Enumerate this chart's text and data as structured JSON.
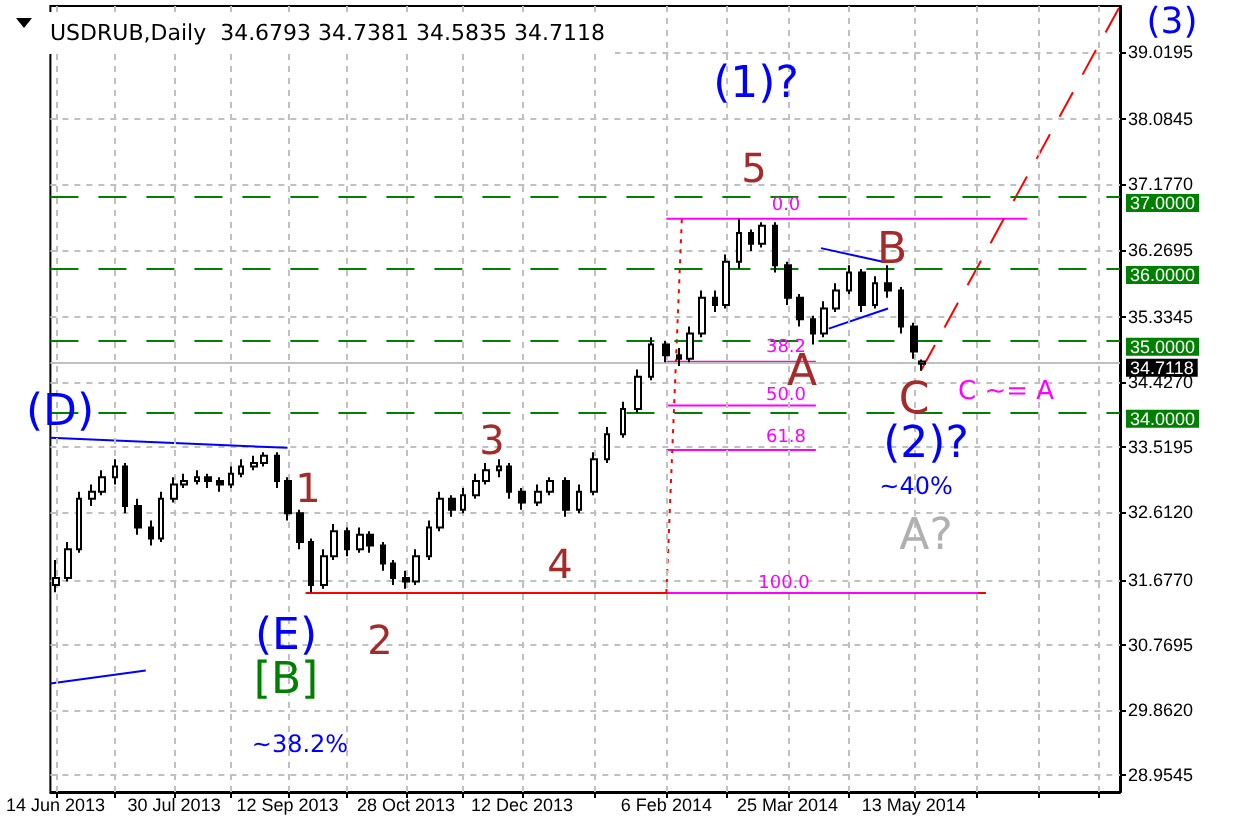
{
  "chart_data": {
    "type": "candlestick",
    "title": "USDRUB,Daily  34.6793 34.7381 34.5835 34.7118",
    "color": "#000000",
    "x": [
      "2013-06-14",
      "2013-06-19",
      "2013-06-23",
      "2013-06-28",
      "2013-07-02",
      "2013-07-07",
      "2013-07-11",
      "2013-07-16",
      "2013-07-21",
      "2013-07-25",
      "2013-07-30",
      "2013-08-03",
      "2013-08-08",
      "2013-08-12",
      "2013-08-17",
      "2013-08-21",
      "2013-08-25",
      "2013-08-30",
      "2013-09-03",
      "2013-09-08",
      "2013-09-12",
      "2013-09-17",
      "2013-09-21",
      "2013-09-26",
      "2013-09-30",
      "2013-10-05",
      "2013-10-10",
      "2013-10-14",
      "2013-10-19",
      "2013-10-23",
      "2013-10-28",
      "2013-11-01",
      "2013-11-06",
      "2013-11-10",
      "2013-11-15",
      "2013-11-19",
      "2013-11-24",
      "2013-11-28",
      "2013-12-03",
      "2013-12-07",
      "2013-12-12",
      "2013-12-18",
      "2013-12-23",
      "2013-12-29",
      "2014-01-03",
      "2014-01-09",
      "2014-01-14",
      "2014-01-20",
      "2014-01-26",
      "2014-01-31",
      "2014-02-06",
      "2014-02-11",
      "2014-02-15",
      "2014-02-20",
      "2014-02-25",
      "2014-03-01",
      "2014-03-06",
      "2014-03-11",
      "2014-03-15",
      "2014-03-20",
      "2014-03-25",
      "2014-03-30",
      "2014-04-04",
      "2014-04-08",
      "2014-04-13",
      "2014-04-18",
      "2014-04-23",
      "2014-04-28",
      "2014-05-03",
      "2014-05-08",
      "2014-05-13",
      "2014-05-16"
    ],
    "ohlc": [
      [
        31.6,
        31.95,
        31.5,
        31.7
      ],
      [
        31.7,
        32.2,
        31.65,
        32.1
      ],
      [
        32.1,
        32.9,
        32.05,
        32.8
      ],
      [
        32.8,
        33.0,
        32.7,
        32.9
      ],
      [
        32.9,
        33.2,
        32.85,
        33.1
      ],
      [
        33.1,
        33.35,
        33.0,
        33.25
      ],
      [
        33.25,
        33.3,
        32.6,
        32.7
      ],
      [
        32.7,
        32.8,
        32.3,
        32.4
      ],
      [
        32.4,
        32.5,
        32.15,
        32.25
      ],
      [
        32.25,
        32.9,
        32.2,
        32.8
      ],
      [
        32.8,
        33.1,
        32.75,
        33.0
      ],
      [
        33.0,
        33.15,
        32.95,
        33.05
      ],
      [
        33.05,
        33.2,
        33.0,
        33.1
      ],
      [
        33.1,
        33.15,
        32.95,
        33.05
      ],
      [
        33.05,
        33.1,
        32.9,
        33.0
      ],
      [
        33.0,
        33.25,
        32.95,
        33.15
      ],
      [
        33.15,
        33.35,
        33.1,
        33.25
      ],
      [
        33.25,
        33.4,
        33.2,
        33.3
      ],
      [
        33.3,
        33.45,
        33.25,
        33.4
      ],
      [
        33.4,
        33.45,
        32.95,
        33.05
      ],
      [
        33.05,
        33.1,
        32.5,
        32.6
      ],
      [
        32.6,
        32.65,
        32.1,
        32.2
      ],
      [
        32.2,
        32.25,
        31.5,
        31.6
      ],
      [
        31.6,
        32.1,
        31.55,
        32.0
      ],
      [
        32.0,
        32.45,
        31.95,
        32.35
      ],
      [
        32.35,
        32.4,
        32.0,
        32.1
      ],
      [
        32.1,
        32.4,
        32.05,
        32.3
      ],
      [
        32.3,
        32.35,
        32.05,
        32.15
      ],
      [
        32.15,
        32.2,
        31.8,
        31.9
      ],
      [
        31.9,
        31.95,
        31.6,
        31.7
      ],
      [
        31.7,
        31.8,
        31.55,
        31.65
      ],
      [
        31.65,
        32.1,
        31.6,
        32.0
      ],
      [
        32.0,
        32.5,
        31.95,
        32.4
      ],
      [
        32.4,
        32.9,
        32.35,
        32.8
      ],
      [
        32.8,
        32.85,
        32.55,
        32.65
      ],
      [
        32.65,
        32.95,
        32.6,
        32.85
      ],
      [
        32.85,
        33.15,
        32.8,
        33.05
      ],
      [
        33.05,
        33.3,
        33.0,
        33.2
      ],
      [
        33.2,
        33.35,
        33.1,
        33.25
      ],
      [
        33.25,
        33.3,
        32.8,
        32.9
      ],
      [
        32.9,
        32.95,
        32.65,
        32.75
      ],
      [
        32.75,
        33.0,
        32.7,
        32.9
      ],
      [
        32.9,
        33.1,
        32.85,
        33.05
      ],
      [
        33.05,
        33.1,
        32.55,
        32.65
      ],
      [
        32.65,
        33.0,
        32.6,
        32.9
      ],
      [
        32.9,
        33.45,
        32.85,
        33.35
      ],
      [
        33.35,
        33.8,
        33.3,
        33.7
      ],
      [
        33.7,
        34.15,
        33.65,
        34.05
      ],
      [
        34.05,
        34.6,
        34.0,
        34.5
      ],
      [
        34.5,
        35.05,
        34.45,
        34.95
      ],
      [
        34.95,
        35.0,
        34.7,
        34.8
      ],
      [
        34.8,
        34.9,
        34.65,
        34.75
      ],
      [
        34.75,
        35.2,
        34.7,
        35.1
      ],
      [
        35.1,
        35.7,
        35.05,
        35.6
      ],
      [
        35.6,
        35.7,
        35.4,
        35.5
      ],
      [
        35.5,
        36.2,
        35.45,
        36.1
      ],
      [
        36.1,
        36.7,
        36.0,
        36.5
      ],
      [
        36.5,
        36.55,
        36.25,
        36.35
      ],
      [
        36.35,
        36.65,
        36.3,
        36.6
      ],
      [
        36.6,
        36.65,
        35.95,
        36.05
      ],
      [
        36.05,
        36.1,
        35.5,
        35.6
      ],
      [
        35.6,
        35.65,
        35.2,
        35.3
      ],
      [
        35.3,
        35.35,
        34.95,
        35.1
      ],
      [
        35.1,
        35.55,
        35.05,
        35.45
      ],
      [
        35.45,
        35.8,
        35.4,
        35.7
      ],
      [
        35.7,
        36.05,
        35.65,
        35.95
      ],
      [
        35.95,
        36.0,
        35.4,
        35.5
      ],
      [
        35.5,
        35.9,
        35.45,
        35.8
      ],
      [
        35.8,
        36.05,
        35.6,
        35.7
      ],
      [
        35.7,
        35.75,
        35.1,
        35.2
      ],
      [
        35.2,
        35.25,
        34.75,
        34.85
      ],
      [
        34.6793,
        34.7381,
        34.5835,
        34.7118
      ]
    ],
    "series": [
      {
        "type": "line",
        "x": [
          "2013-06-12",
          "2013-09-12"
        ],
        "values": [
          33.65,
          33.51
        ],
        "color": "#0000ff",
        "line_style": "solid"
      },
      {
        "type": "line",
        "x": [
          "2013-06-12",
          "2013-07-19"
        ],
        "values": [
          30.23,
          30.41
        ],
        "color": "#0000ff",
        "line_style": "solid"
      },
      {
        "type": "line",
        "x": [
          "2014-04-07",
          "2014-05-01"
        ],
        "values": [
          36.29,
          36.1
        ],
        "color": "#0000ff",
        "line_style": "solid"
      },
      {
        "type": "line",
        "x": [
          "2014-04-10",
          "2014-05-03"
        ],
        "values": [
          35.17,
          35.45
        ],
        "color": "#0000ff",
        "line_style": "solid"
      },
      {
        "type": "line",
        "x": [
          "2013-09-19",
          "2014-06-10"
        ],
        "values": [
          31.49,
          31.49
        ],
        "color": "#ff0000",
        "line_style": "solid"
      },
      {
        "type": "line",
        "x": [
          "2014-02-06",
          "2014-06-26"
        ],
        "values": [
          36.7,
          36.7
        ],
        "color": "#ff00ff",
        "line_style": "solid"
      },
      {
        "type": "line",
        "x": [
          "2014-02-06",
          "2014-04-05"
        ],
        "values": [
          34.71,
          34.71
        ],
        "color": "#ff00ff",
        "line_style": "solid"
      },
      {
        "type": "line",
        "x": [
          "2014-02-06",
          "2014-04-05"
        ],
        "values": [
          34.1,
          34.1
        ],
        "color": "#ff00ff",
        "line_style": "solid"
      },
      {
        "type": "line",
        "x": [
          "2014-02-06",
          "2014-04-05"
        ],
        "values": [
          33.48,
          33.48
        ],
        "color": "#ff00ff",
        "line_style": "solid"
      },
      {
        "type": "line",
        "x": [
          "2014-02-06",
          "2014-06-07"
        ],
        "values": [
          31.49,
          31.49
        ],
        "color": "#ff00ff",
        "line_style": "solid"
      },
      {
        "type": "line",
        "x": [
          "2014-02-06",
          "2014-02-12"
        ],
        "values": [
          31.49,
          36.7
        ],
        "color": "#ff0000",
        "line_style": "dotted"
      },
      {
        "type": "line",
        "x": [
          "2014-05-16",
          "2014-08-01"
        ],
        "values": [
          34.6,
          39.66
        ],
        "color": "#ff0000",
        "line_style": "dashed"
      }
    ],
    "xlim": [
      "2013-06-12",
      "2014-08-01"
    ],
    "xticks": [
      {
        "value": "2013-06-14",
        "label": "14 Jun 2013"
      },
      {
        "value": "2013-07-07",
        "label": null
      },
      {
        "value": "2013-07-30",
        "label": "30 Jul 2013"
      },
      {
        "value": "2013-08-21",
        "label": null
      },
      {
        "value": "2013-09-12",
        "label": "12 Sep 2013"
      },
      {
        "value": "2013-10-05",
        "label": null
      },
      {
        "value": "2013-10-28",
        "label": "28 Oct 2013"
      },
      {
        "value": "2013-11-19",
        "label": null
      },
      {
        "value": "2013-12-12",
        "label": "12 Dec 2013"
      },
      {
        "value": "2014-01-09",
        "label": null
      },
      {
        "value": "2014-02-06",
        "label": "6 Feb 2014"
      },
      {
        "value": "2014-03-01",
        "label": null
      },
      {
        "value": "2014-03-25",
        "label": "25 Mar 2014"
      },
      {
        "value": "2014-04-18",
        "label": null
      },
      {
        "value": "2014-05-13",
        "label": "13 May 2014"
      },
      {
        "value": "2014-06-06",
        "label": null
      },
      {
        "value": "2014-06-30",
        "label": null
      },
      {
        "value": "2014-07-24",
        "label": null
      }
    ],
    "ylim": [
      28.72,
      39.66
    ],
    "yticks": [
      {
        "value": 28.9545,
        "label": "28.9545"
      },
      {
        "value": 29.862,
        "label": "29.8620"
      },
      {
        "value": 30.7695,
        "label": "30.7695"
      },
      {
        "value": 31.677,
        "label": "31.6770"
      },
      {
        "value": 32.612,
        "label": "32.6120"
      },
      {
        "value": 33.5195,
        "label": "33.5195"
      },
      {
        "value": 34.427,
        "label": "34.4270"
      },
      {
        "value": 35.3345,
        "label": "35.3345"
      },
      {
        "value": 36.2695,
        "label": "36.2695"
      },
      {
        "value": 37.177,
        "label": "37.1770"
      },
      {
        "value": 38.0845,
        "label": "38.0845"
      },
      {
        "value": 39.0195,
        "label": "39.0195"
      }
    ],
    "grid": true,
    "ref_lines": [
      {
        "axis": "y",
        "value": 37,
        "label": "37.0000",
        "color": "#008000",
        "line_style": "dashed"
      },
      {
        "axis": "y",
        "value": 36,
        "label": "36.0000",
        "color": "#008000",
        "line_style": "dashed"
      },
      {
        "axis": "y",
        "value": 35,
        "label": "35.0000",
        "color": "#008000",
        "line_style": "dashed"
      },
      {
        "axis": "y",
        "value": 34,
        "label": "34.0000",
        "color": "#008000",
        "line_style": "dashed"
      },
      {
        "axis": "y",
        "value": 34.7118,
        "label": "34.7118",
        "color": "#c0c0c0",
        "line_style": "solid"
      }
    ],
    "annotations": [
      "(D)",
      "(E)",
      "[B]",
      "~38.2%",
      "1",
      "2",
      "3",
      "4",
      "5",
      "(1)?",
      "A",
      "B",
      "C",
      "C ~= A",
      "(2)?",
      "~40%",
      "A?",
      "0.0",
      "38.2",
      "50.0",
      "61.8",
      "100.0",
      "(3)"
    ]
  }
}
